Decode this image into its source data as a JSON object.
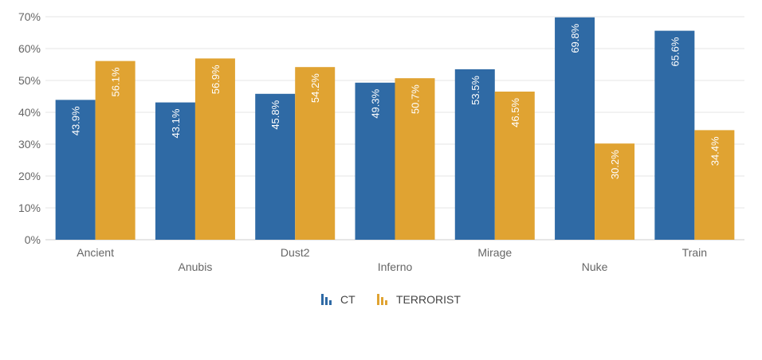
{
  "chart_data": {
    "type": "bar",
    "title": "",
    "xlabel": "",
    "ylabel": "",
    "ylim": [
      0,
      70
    ],
    "yticks": [
      "0%",
      "10%",
      "20%",
      "30%",
      "40%",
      "50%",
      "60%",
      "70%"
    ],
    "ytick_values": [
      0,
      10,
      20,
      30,
      40,
      50,
      60,
      70
    ],
    "categories": [
      "Ancient",
      "Anubis",
      "Dust2",
      "Inferno",
      "Mirage",
      "Nuke",
      "Train"
    ],
    "series": [
      {
        "name": "CT",
        "color": "#2f6aa5",
        "values": [
          43.9,
          43.1,
          45.8,
          49.3,
          53.5,
          69.8,
          65.6
        ],
        "labels": [
          "43.9%",
          "43.1%",
          "45.8%",
          "49.3%",
          "53.5%",
          "69.8%",
          "65.6%"
        ]
      },
      {
        "name": "TERRORIST",
        "color": "#e0a332",
        "values": [
          56.1,
          56.9,
          54.2,
          50.7,
          46.5,
          30.2,
          34.4
        ],
        "labels": [
          "56.1%",
          "56.9%",
          "54.2%",
          "50.7%",
          "46.5%",
          "30.2%",
          "34.4%"
        ]
      }
    ],
    "grid": true,
    "legend": "bottom-center"
  }
}
